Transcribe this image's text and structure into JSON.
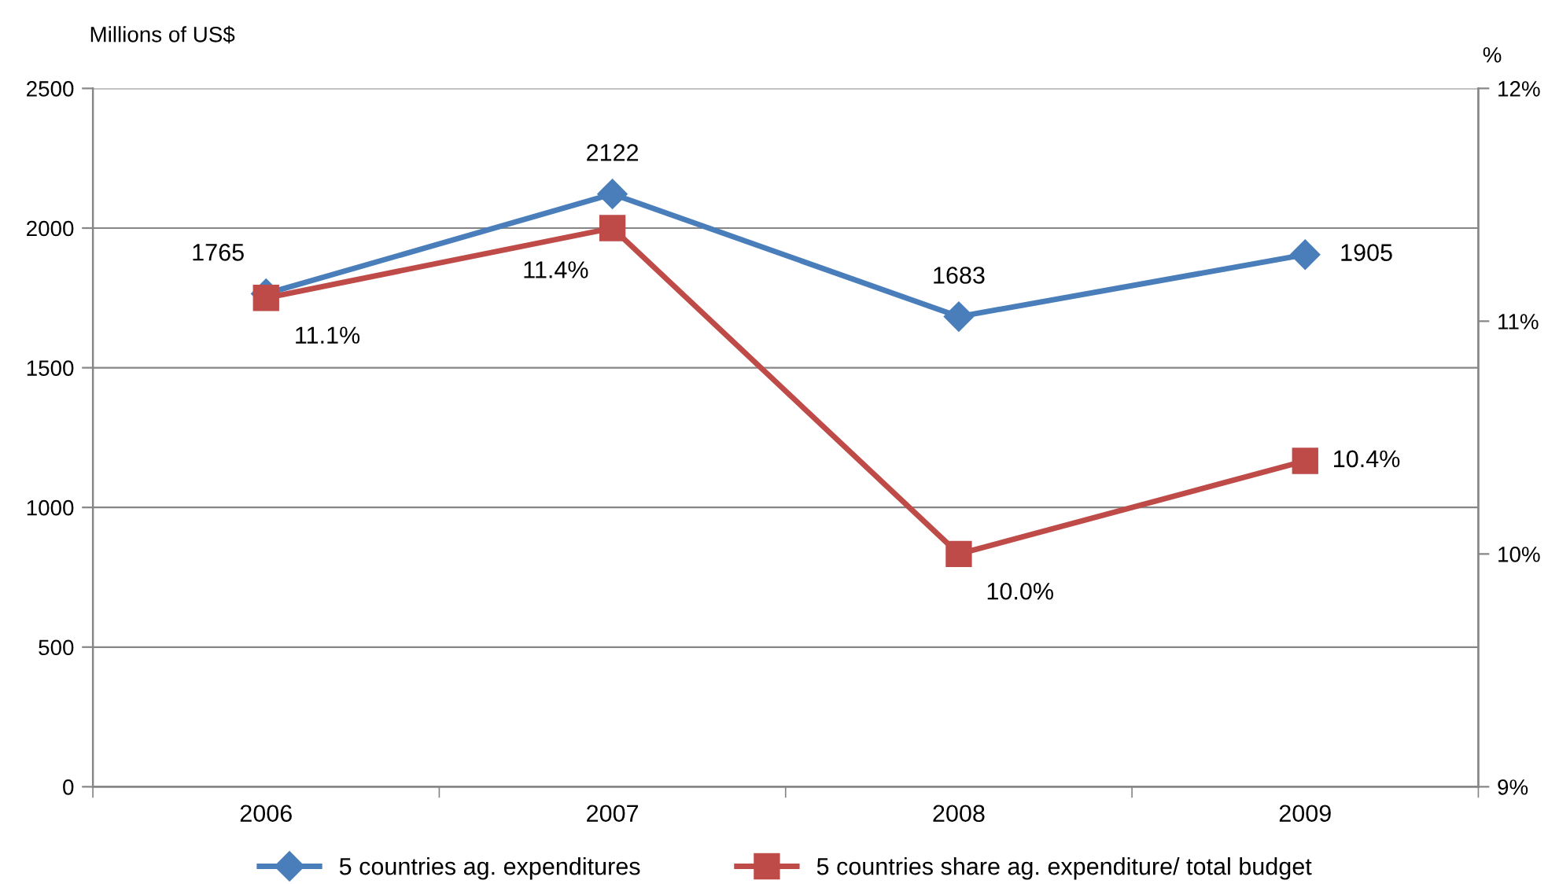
{
  "chart_data": {
    "type": "line",
    "ylabel": "Millions of US$",
    "y2label": "%",
    "categories": [
      "2006",
      "2007",
      "2008",
      "2009"
    ],
    "series": [
      {
        "name": "5 countries ag. expenditures",
        "color": "#4a7ebb",
        "marker": "diamond",
        "values": [
          1765,
          2122,
          1683,
          1905
        ],
        "value_labels": [
          "1765",
          "2122",
          "1683",
          "1905"
        ]
      },
      {
        "name": "5 countries share ag. expenditure/ total budget",
        "color": "#be4b48",
        "marker": "square",
        "axis": "y2",
        "values": [
          11.1,
          11.4,
          10.0,
          10.4
        ],
        "value_labels": [
          "11.1%",
          "11.4%",
          "10.0%",
          "10.4%"
        ]
      }
    ],
    "ylim": [
      0,
      2500
    ],
    "yticks": [
      0,
      500,
      1000,
      1500,
      2000,
      2500
    ],
    "y2lim": [
      9,
      12
    ],
    "y2ticks": [
      {
        "value": 9,
        "label": "9%"
      },
      {
        "value": 10,
        "label": "10%"
      },
      {
        "value": 11,
        "label": "11%"
      },
      {
        "value": 12,
        "label": "12%"
      }
    ],
    "grid": "y",
    "legend": "bottom",
    "line_style": "solid"
  }
}
